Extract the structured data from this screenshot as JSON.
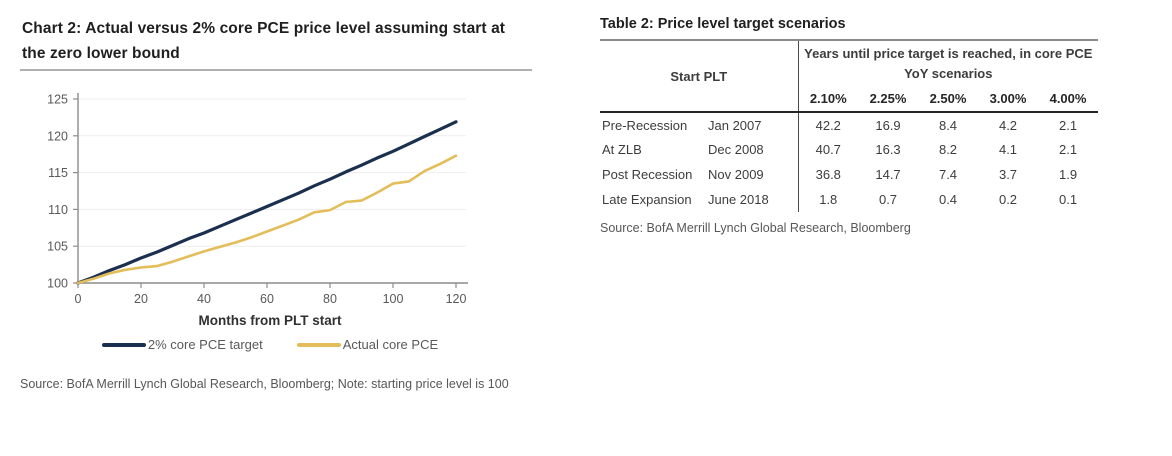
{
  "chart_panel": {
    "title": "Chart 2: Actual versus 2% core PCE price level assuming start at the zero lower bound",
    "source": "Source: BofA Merrill Lynch Global Research, Bloomberg; Note: starting price level is 100"
  },
  "chart_data": {
    "type": "line",
    "title": "Chart 2: Actual versus 2% core PCE price level assuming start at the zero lower bound",
    "xlabel": "Months from PLT start",
    "ylabel": "",
    "xlim": [
      0,
      120
    ],
    "ylim": [
      100,
      125
    ],
    "xticks": [
      0,
      20,
      40,
      60,
      80,
      100,
      120
    ],
    "yticks": [
      100,
      105,
      110,
      115,
      120,
      125
    ],
    "grid": true,
    "legend_position": "bottom",
    "x": [
      0,
      5,
      10,
      15,
      20,
      25,
      30,
      35,
      40,
      45,
      50,
      55,
      60,
      65,
      70,
      75,
      80,
      85,
      90,
      95,
      100,
      105,
      110,
      115,
      120
    ],
    "series": [
      {
        "name": "2% core PCE target",
        "color": "#1b2f4e",
        "values": [
          100,
          100.8,
          101.7,
          102.5,
          103.4,
          104.2,
          105.1,
          106.0,
          106.8,
          107.7,
          108.6,
          109.5,
          110.4,
          111.3,
          112.2,
          113.2,
          114.1,
          115.1,
          116.0,
          117.0,
          117.9,
          118.9,
          119.9,
          120.9,
          121.9
        ]
      },
      {
        "name": "Actual core PCE",
        "color": "#e3bd59",
        "values": [
          100,
          100.6,
          101.3,
          101.8,
          102.1,
          102.3,
          102.9,
          103.6,
          104.3,
          104.9,
          105.5,
          106.2,
          107.0,
          107.8,
          108.6,
          109.6,
          109.9,
          111.0,
          111.2,
          112.3,
          113.5,
          113.8,
          115.2,
          116.2,
          117.3
        ]
      }
    ]
  },
  "table_panel": {
    "title": "Table 2: Price level target scenarios",
    "corner_header": "Start PLT",
    "span_header": "Years until price target is reached, in core PCE YoY scenarios",
    "scenario_headers": [
      "2.10%",
      "2.25%",
      "2.50%",
      "3.00%",
      "4.00%"
    ],
    "rows": [
      {
        "scenario": "Pre-Recession",
        "date": "Jan 2007",
        "values": [
          "42.2",
          "16.9",
          "8.4",
          "4.2",
          "2.1"
        ]
      },
      {
        "scenario": "At ZLB",
        "date": "Dec 2008",
        "values": [
          "40.7",
          "16.3",
          "8.2",
          "4.1",
          "2.1"
        ]
      },
      {
        "scenario": "Post Recession",
        "date": "Nov 2009",
        "values": [
          "36.8",
          "14.7",
          "7.4",
          "3.7",
          "1.9"
        ]
      },
      {
        "scenario": "Late Expansion",
        "date": "June 2018",
        "values": [
          "1.8",
          "0.7",
          "0.4",
          "0.2",
          "0.1"
        ]
      }
    ],
    "source": "Source: BofA Merrill Lynch Global Research, Bloomberg"
  }
}
